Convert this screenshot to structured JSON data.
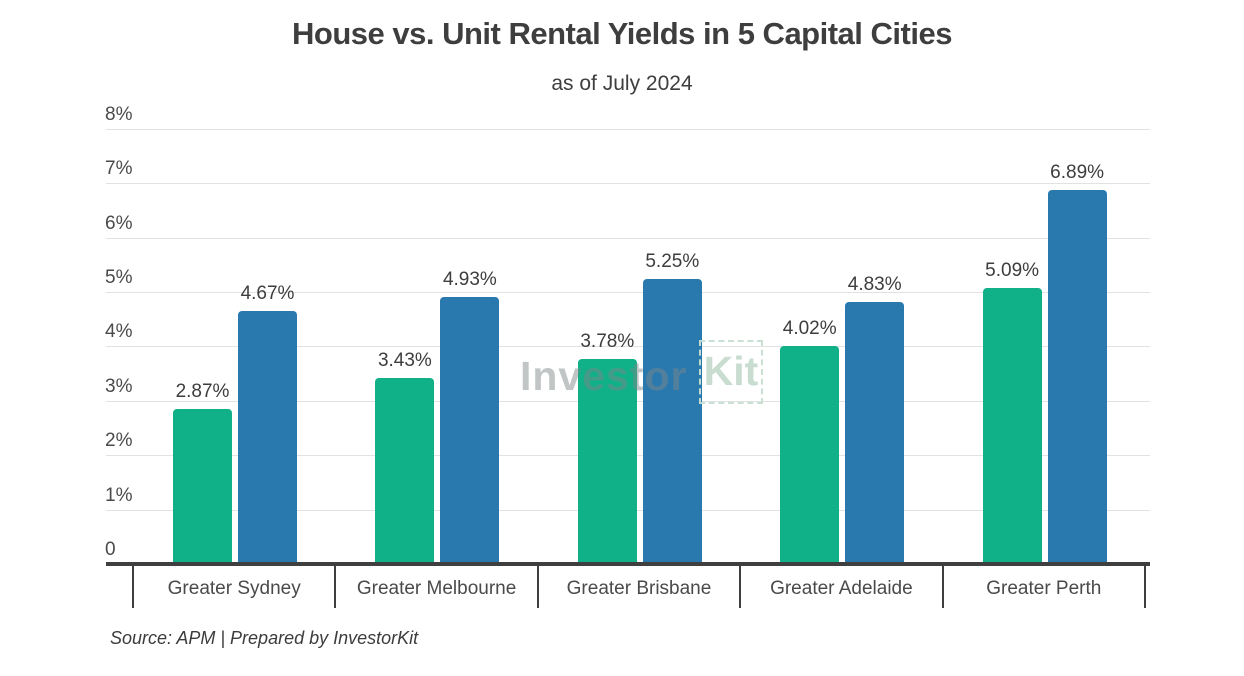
{
  "header": {
    "title": "House vs. Unit Rental Yields in 5 Capital Cities",
    "subtitle": "as of July 2024"
  },
  "watermark": {
    "text_left": "Investor",
    "text_right": "Kit"
  },
  "footer": {
    "source_note": "Source: APM | Prepared by InvestorKit"
  },
  "colors": {
    "house_bar": "#10B089",
    "unit_bar": "#2A79AE",
    "axis": "#3f3f3f",
    "gridline": "#e2e2e2",
    "text": "#3d3d3d"
  },
  "chart_data": {
    "type": "bar",
    "title": "House vs. Unit Rental Yields in 5 Capital Cities",
    "subtitle": "as of July 2024",
    "categories": [
      "Greater Sydney",
      "Greater Melbourne",
      "Greater Brisbane",
      "Greater Adelaide",
      "Greater Perth"
    ],
    "series": [
      {
        "name": "House",
        "color": "#10B089",
        "values": [
          2.87,
          3.43,
          3.78,
          4.02,
          5.09
        ],
        "labels": [
          "2.87%",
          "3.43%",
          "3.78%",
          "4.02%",
          "5.09%"
        ]
      },
      {
        "name": "Unit",
        "color": "#2A79AE",
        "values": [
          4.67,
          4.93,
          5.25,
          4.83,
          6.89
        ],
        "labels": [
          "4.67%",
          "4.93%",
          "5.25%",
          "4.83%",
          "6.89%"
        ]
      }
    ],
    "xlabel": "",
    "ylabel": "",
    "ylim": [
      0,
      8
    ],
    "ytick_labels": [
      "0",
      "1%",
      "2%",
      "3%",
      "4%",
      "5%",
      "6%",
      "7%",
      "8%"
    ],
    "grid": true,
    "legend_position": "none",
    "value_labels_shown": true
  }
}
